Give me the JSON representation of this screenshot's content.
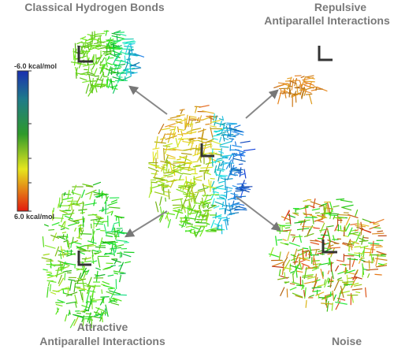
{
  "panels": [
    {
      "title_lines": [
        "Classical Hydrogen Bonds"
      ]
    },
    {
      "title_lines": [
        "Repulsive",
        "Antiparallel Interactions"
      ]
    },
    {
      "title_lines": [
        "Attractive",
        "Antiparallel Interactions"
      ]
    },
    {
      "title_lines": [
        "Noise"
      ]
    }
  ],
  "colorbar": {
    "top_label": "-6.0 kcal/mol",
    "bottom_label": "6.0 kcal/mol"
  }
}
